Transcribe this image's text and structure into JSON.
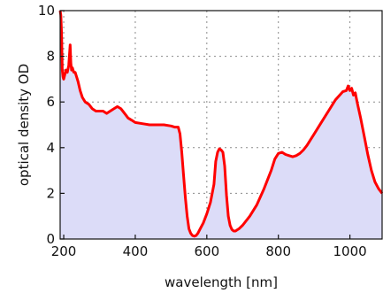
{
  "chart_data": {
    "type": "area",
    "title": "",
    "xlabel": "wavelength [nm]",
    "ylabel": "optical density OD",
    "xlim": [
      190,
      1090
    ],
    "ylim": [
      0,
      10
    ],
    "grid": true,
    "xticks": [
      200,
      400,
      600,
      800,
      1000
    ],
    "yticks": [
      0,
      2,
      4,
      6,
      8,
      10
    ],
    "line_color": "#ff0000",
    "fill_color": "#dcdcf8",
    "series": [
      {
        "x": [
          190,
          192,
          194,
          196,
          198,
          200,
          203,
          206,
          210,
          214,
          218,
          220,
          222,
          224,
          228,
          232,
          236,
          240,
          246,
          252,
          260,
          270,
          280,
          290,
          300,
          310,
          320,
          330,
          340,
          350,
          360,
          370,
          380,
          390,
          400,
          420,
          440,
          460,
          480,
          500,
          510,
          520,
          525,
          530,
          535,
          540,
          545,
          550,
          555,
          560,
          565,
          570,
          575,
          580,
          590,
          600,
          610,
          620,
          625,
          630,
          635,
          640,
          645,
          650,
          655,
          660,
          665,
          670,
          675,
          680,
          690,
          700,
          720,
          740,
          760,
          780,
          790,
          800,
          810,
          820,
          830,
          840,
          850,
          860,
          870,
          880,
          890,
          900,
          920,
          940,
          960,
          980,
          990,
          995,
          1000,
          1005,
          1010,
          1015,
          1020,
          1030,
          1040,
          1050,
          1060,
          1070,
          1080,
          1090
        ],
        "y": [
          10,
          9.8,
          9.0,
          7.4,
          7.1,
          7.0,
          7.2,
          7.4,
          7.3,
          7.6,
          8.5,
          7.7,
          7.4,
          7.5,
          7.3,
          7.3,
          7.1,
          6.9,
          6.5,
          6.2,
          6.0,
          5.9,
          5.7,
          5.6,
          5.6,
          5.6,
          5.5,
          5.6,
          5.7,
          5.8,
          5.7,
          5.5,
          5.3,
          5.2,
          5.1,
          5.05,
          5.0,
          5.0,
          5.0,
          4.95,
          4.9,
          4.9,
          4.6,
          3.8,
          2.8,
          1.8,
          1.0,
          0.45,
          0.25,
          0.15,
          0.12,
          0.15,
          0.25,
          0.4,
          0.7,
          1.1,
          1.6,
          2.4,
          3.4,
          3.8,
          3.95,
          3.9,
          3.8,
          3.2,
          1.9,
          1.0,
          0.6,
          0.42,
          0.35,
          0.35,
          0.45,
          0.6,
          1.0,
          1.5,
          2.2,
          3.0,
          3.5,
          3.75,
          3.8,
          3.7,
          3.65,
          3.6,
          3.65,
          3.75,
          3.9,
          4.1,
          4.35,
          4.6,
          5.1,
          5.6,
          6.1,
          6.45,
          6.5,
          6.7,
          6.5,
          6.6,
          6.3,
          6.4,
          6.0,
          5.3,
          4.5,
          3.7,
          3.0,
          2.5,
          2.2,
          2.0
        ]
      }
    ]
  }
}
